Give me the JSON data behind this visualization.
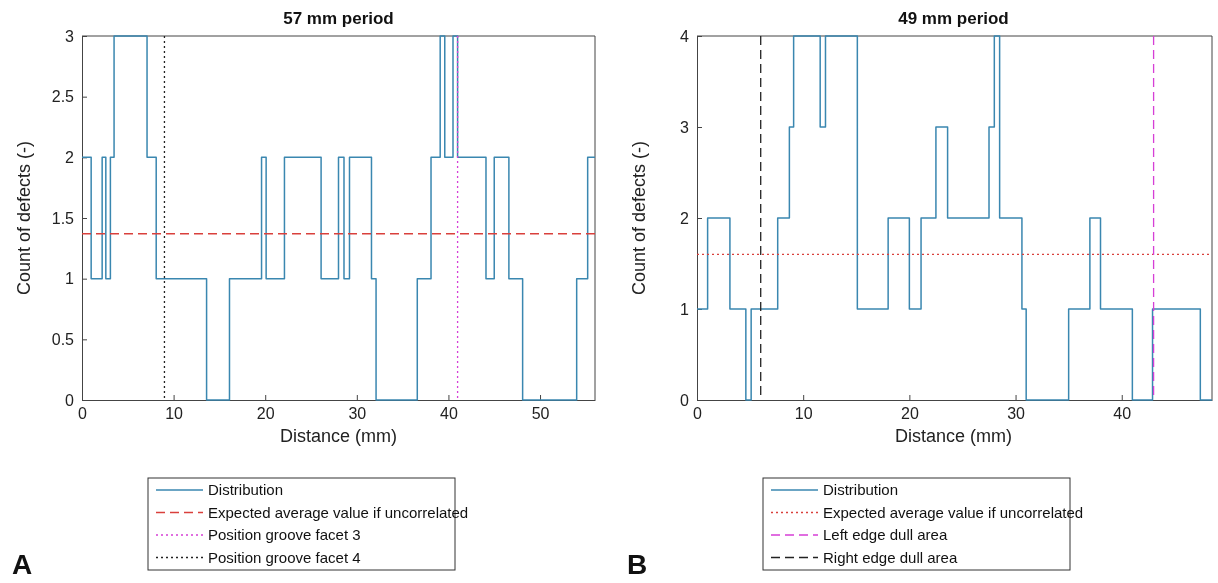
{
  "chart_data": [
    {
      "type": "step",
      "title": "57 mm period",
      "xlabel": "Distance (mm)",
      "ylabel": "Count of defects (-)",
      "x": [
        0,
        1.0,
        2.2,
        2.6,
        3.1,
        3.5,
        7.1,
        8.1,
        13.6,
        16.1,
        19.6,
        20.1,
        22.1,
        26.1,
        28.0,
        28.6,
        29.2,
        31.6,
        32.1,
        36.6,
        38.1,
        39.1,
        39.6,
        40.5,
        41.0,
        44.1,
        45.0,
        46.6,
        48.1,
        54.0,
        55.2,
        56
      ],
      "series": [
        {
          "name": "Distribution",
          "color": "#3a87b0",
          "values": [
            2,
            1,
            2,
            1,
            2,
            3,
            2,
            1,
            0,
            1,
            2,
            1,
            2,
            1,
            2,
            1,
            2,
            1,
            0,
            1,
            2,
            3,
            2,
            3,
            2,
            1,
            2,
            1,
            0,
            1,
            2,
            2
          ]
        }
      ],
      "xlim": [
        0,
        56
      ],
      "ylim": [
        0,
        3
      ],
      "xticks": [
        0,
        10,
        20,
        30,
        40,
        50
      ],
      "yticks": [
        0,
        0.5,
        1,
        1.5,
        2,
        2.5,
        3
      ],
      "ref_lines": [
        {
          "axis": "y",
          "value": 1.37,
          "label": "Expected average value if uncorrelated",
          "color": "#d9403c",
          "line_style": "dashed"
        },
        {
          "axis": "x",
          "value": 41,
          "label": "Position groove facet 3",
          "color": "#d63fd6",
          "line_style": "dotted"
        },
        {
          "axis": "x",
          "value": 9,
          "label": "Position groove facet 4",
          "color": "#222222",
          "line_style": "dotted"
        }
      ],
      "legend": "bottom",
      "annotations": [
        "A"
      ]
    },
    {
      "type": "step",
      "title": "49 mm period",
      "xlabel": "Distance (mm)",
      "ylabel": "Count of defects (-)",
      "x": [
        0,
        1.0,
        3.1,
        4.6,
        5.1,
        7.6,
        8.7,
        9.1,
        11.6,
        12.1,
        15.1,
        18.0,
        20.0,
        21.1,
        22.5,
        23.6,
        27.5,
        28.0,
        28.5,
        30.6,
        31.0,
        35.0,
        37.0,
        38.0,
        41.0,
        42.9,
        47.4,
        48.5
      ],
      "series": [
        {
          "name": "Distribution",
          "color": "#3a87b0",
          "values": [
            1,
            2,
            1,
            0,
            1,
            2,
            3,
            4,
            3,
            4,
            1,
            2,
            1,
            2,
            3,
            2,
            3,
            4,
            2,
            1,
            0,
            1,
            2,
            1,
            0,
            1,
            0,
            0
          ]
        }
      ],
      "xlim": [
        0,
        48.5
      ],
      "ylim": [
        0,
        4
      ],
      "xticks": [
        0,
        10,
        20,
        30,
        40
      ],
      "yticks": [
        0,
        1,
        2,
        3,
        4
      ],
      "ref_lines": [
        {
          "axis": "y",
          "value": 1.6,
          "label": "Expected average value if uncorrelated",
          "color": "#d9403c",
          "line_style": "dotted"
        },
        {
          "axis": "x",
          "value": 43,
          "label": "Left edge dull area",
          "color": "#d63fd6",
          "line_style": "dashed"
        },
        {
          "axis": "x",
          "value": 6,
          "label": "Right edge dull area",
          "color": "#222222",
          "line_style": "dashed"
        }
      ],
      "legend": "bottom",
      "annotations": [
        "B"
      ]
    }
  ]
}
